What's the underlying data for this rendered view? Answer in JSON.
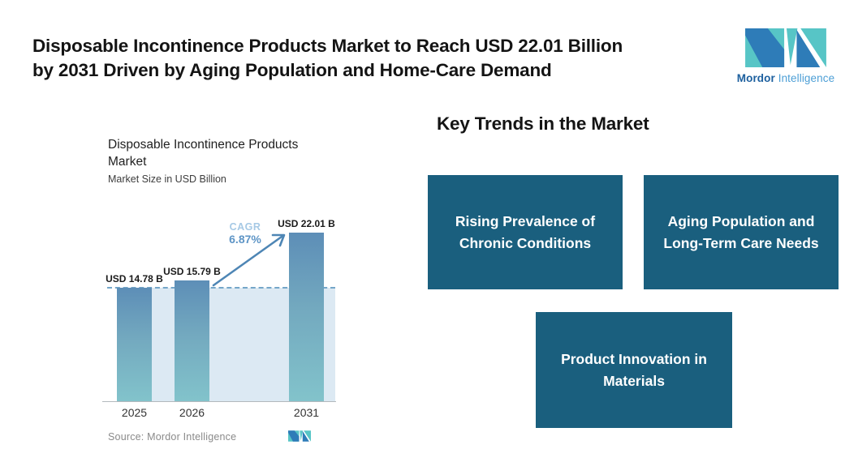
{
  "header": {
    "title_line1": "Disposable Incontinence Products Market to Reach USD 22.01 Billion",
    "title_line2": "by 2031 Driven by Aging Population and Home-Care Demand",
    "brand": {
      "word_bold": "Mordor",
      "word_light": "Intelligence"
    }
  },
  "chart": {
    "title": "Disposable Incontinence Products Market",
    "subtitle": "Market Size in USD Billion",
    "source": "Source: Mordor Intelligence",
    "cagr_label": "CAGR",
    "cagr_value": "6.87%"
  },
  "chart_data": {
    "type": "bar",
    "title": "Disposable Incontinence Products Market",
    "subtitle": "Market Size in USD Billion",
    "unit": "USD Billion",
    "categories": [
      "2025",
      "2026",
      "2031"
    ],
    "values": [
      14.78,
      15.79,
      22.01
    ],
    "bar_labels": [
      "USD 14.78 B",
      "USD 15.79 B",
      "USD 22.01 B"
    ],
    "cagr_label": "CAGR",
    "cagr_value": "6.87%",
    "reference_line": "dashed horizontal line at 2025 value (14.78)",
    "ylim": [
      0,
      24
    ],
    "grid": false,
    "legend": "none",
    "annotations": [
      "growth arrow from 2026 bar to 2031 bar labeled CAGR 6.87%"
    ]
  },
  "trends": {
    "heading": "Key Trends in the Market",
    "boxes": [
      "Rising Prevalence of Chronic Conditions",
      "Aging Population and Long-Term Care Needs",
      "Product Innovation in Materials"
    ]
  },
  "colors": {
    "card_background": "#1a5f7e",
    "bar_gradient_top": "#5d8eb7",
    "bar_gradient_bottom": "#82c3cb",
    "reference_band": "#dce9f3",
    "dashed_line": "#74a6c9",
    "arrow": "#4e86b5",
    "cagr_label": "#a6c9e5",
    "cagr_value": "#5e95c6",
    "logo_blue": "#2e7cb8",
    "logo_teal": "#57c5c6",
    "title_text": "#141414",
    "source_text": "#8a8a8a"
  }
}
